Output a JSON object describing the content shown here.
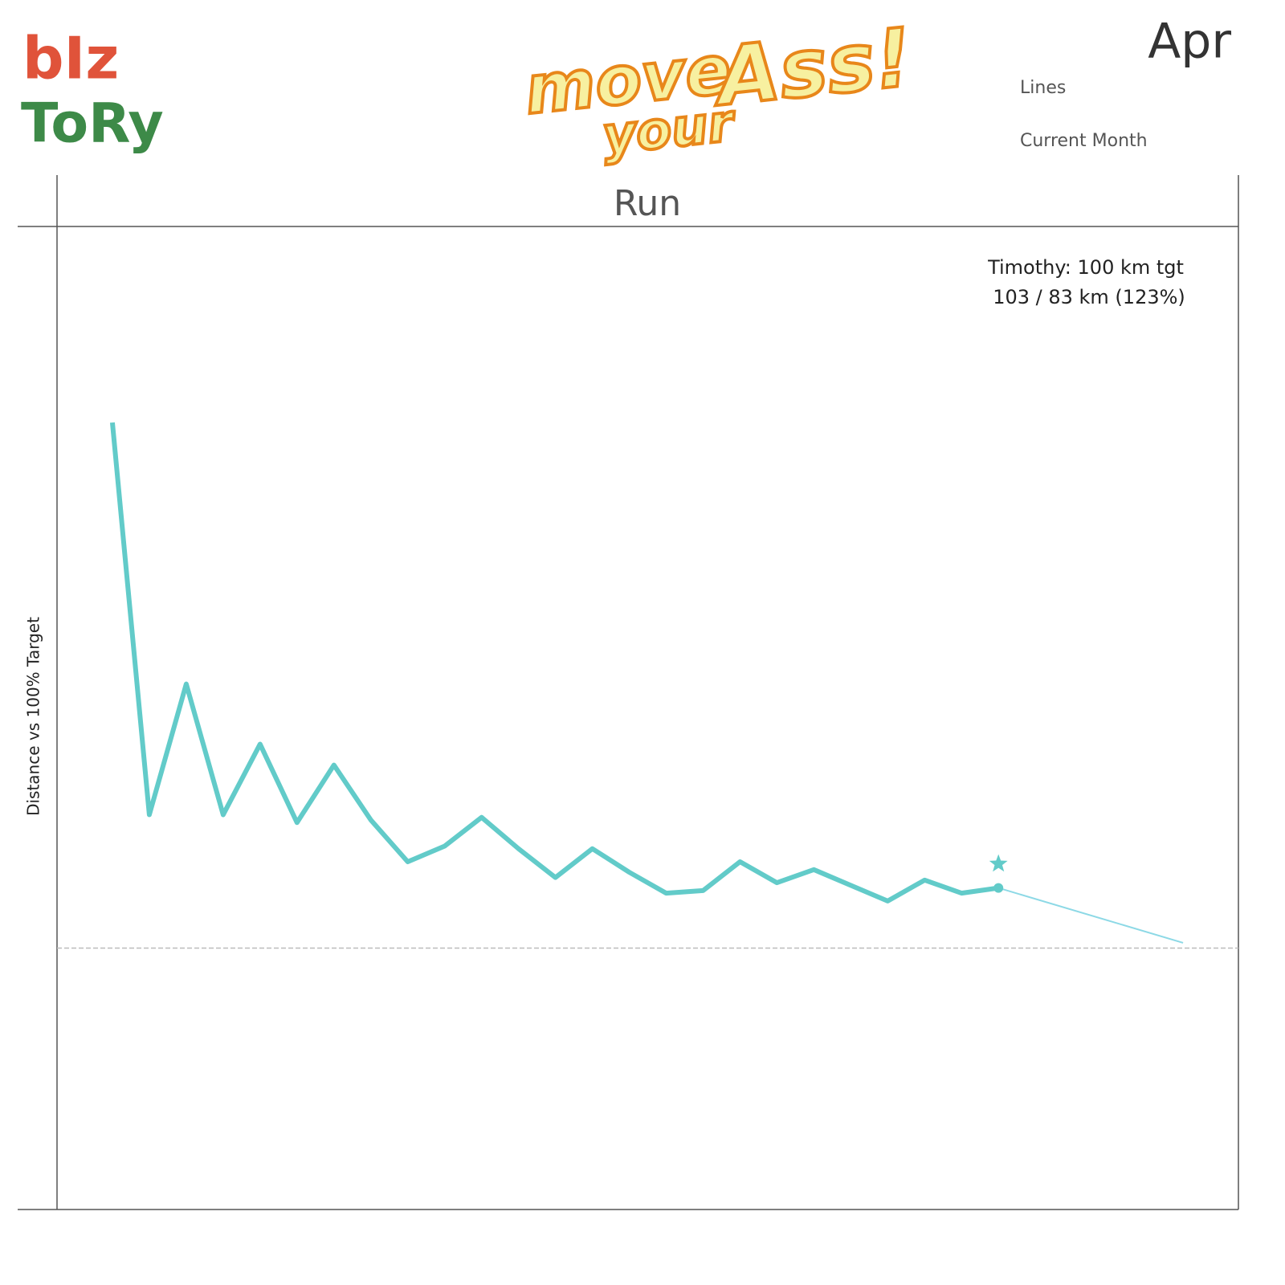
{
  "header": {
    "logo_left": [
      "bIz",
      "ToRy"
    ],
    "logo_center": [
      "move",
      "your",
      "Ass!"
    ],
    "month": "Apr",
    "legend_labels": [
      "Lines",
      "Current Month"
    ]
  },
  "chart_data": {
    "type": "line",
    "title": "Run",
    "ylabel": "Distance vs 100% Target",
    "annotation": [
      "Timothy: 100 km tgt",
      "103 / 83 km (123%)"
    ],
    "x": [
      1,
      2,
      3,
      4,
      5,
      6,
      7,
      8,
      9,
      10,
      11,
      12,
      13,
      14,
      15,
      16,
      17,
      18,
      19,
      20,
      21,
      22,
      23,
      24,
      25
    ],
    "xlim": [
      -0.5,
      31.5
    ],
    "ylim": [
      0,
      376
    ],
    "reference_line": 100,
    "series": [
      {
        "color": "#62cbc9",
        "values": [
          301,
          151,
          201,
          151,
          178,
          148,
          170,
          149,
          133,
          139,
          150,
          138,
          127,
          138,
          129,
          121,
          122,
          133,
          125,
          130,
          124,
          118,
          126,
          121,
          123
        ]
      },
      {
        "color": "#8dd9e6",
        "x": [
          25,
          30
        ],
        "values": [
          123,
          102
        ]
      }
    ]
  }
}
